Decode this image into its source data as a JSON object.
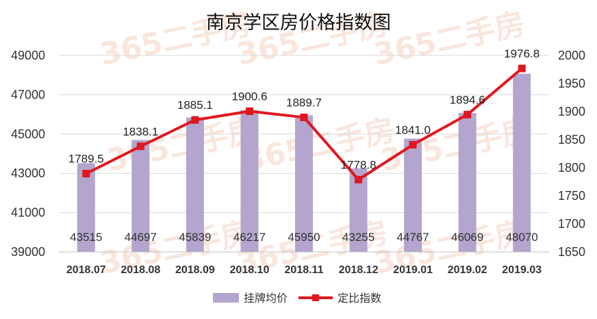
{
  "chart_data": {
    "type": "bar+line",
    "title": "南京学区房价格指数图",
    "categories": [
      "2018.07",
      "2018.08",
      "2018.09",
      "2018.10",
      "2018.11",
      "2018.12",
      "2019.01",
      "2019.02",
      "2019.03"
    ],
    "series": [
      {
        "name": "挂牌均价",
        "type": "bar",
        "axis": "left",
        "color": "#b3a5cd",
        "values": [
          43515,
          44697,
          45839,
          46217,
          45950,
          43255,
          44767,
          46069,
          48070
        ],
        "labels": [
          "43515",
          "44697",
          "45839",
          "46217",
          "45950",
          "43255",
          "44767",
          "46069",
          "48070"
        ]
      },
      {
        "name": "定比指数",
        "type": "line",
        "axis": "right",
        "color": "#e0171f",
        "values": [
          1789.5,
          1838.1,
          1885.1,
          1900.6,
          1889.7,
          1778.8,
          1841.0,
          1894.6,
          1976.8
        ],
        "labels": [
          "1789.5",
          "1838.1",
          "1885.1",
          "1900.6",
          "1889.7",
          "1778.8",
          "1841.0",
          "1894.6",
          "1976.8"
        ]
      }
    ],
    "y_left": {
      "ylim": [
        39000,
        49000
      ],
      "ticks": [
        39000,
        41000,
        43000,
        45000,
        47000,
        49000
      ],
      "tick_labels": [
        "39000",
        "41000",
        "43000",
        "45000",
        "47000",
        "49000"
      ]
    },
    "y_right": {
      "ylim": [
        1650,
        2000
      ],
      "ticks": [
        1650,
        1700,
        1750,
        1800,
        1850,
        1900,
        1950,
        2000
      ],
      "tick_labels": [
        "1650",
        "1700",
        "1750",
        "1800",
        "1850",
        "1900",
        "1950",
        "2000"
      ]
    },
    "grid": true,
    "legend_position": "bottom-center"
  },
  "watermark": {
    "text": "365二手房",
    "color": "#f0b8a0"
  }
}
